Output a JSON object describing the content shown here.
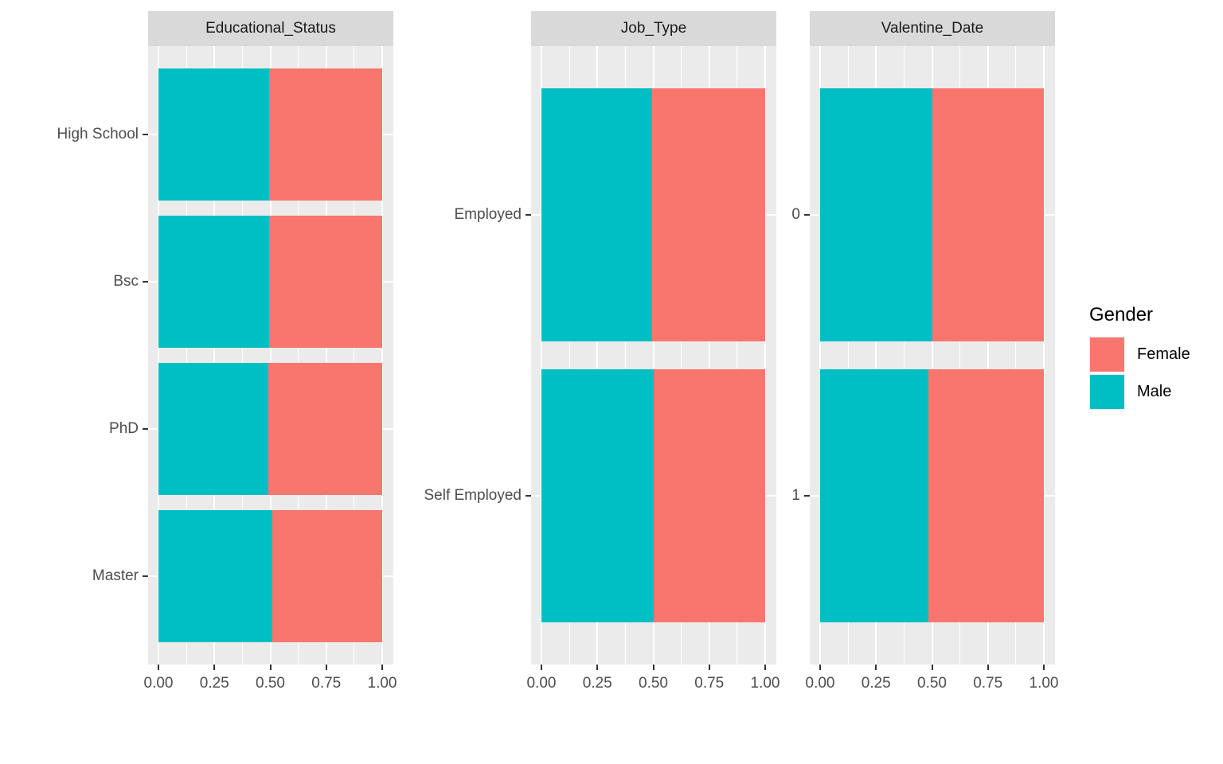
{
  "colors": {
    "male": "#00BFC4",
    "female": "#F8766D",
    "panel_bg": "#EBEBEB",
    "strip_bg": "#D9D9D9",
    "grid": "#FFFFFF",
    "axis_text": "#4D4D4D",
    "strip_text": "#1A1A1A",
    "tick_mark": "#333333"
  },
  "legend": {
    "title": "Gender",
    "items": [
      {
        "label": "Female",
        "color": "#F8766D"
      },
      {
        "label": "Male",
        "color": "#00BFC4"
      }
    ]
  },
  "x_axis": {
    "tick_labels": [
      "0.00",
      "0.25",
      "0.50",
      "0.75",
      "1.00"
    ],
    "tick_values": [
      0,
      0.25,
      0.5,
      0.75,
      1.0
    ],
    "minor_values": [
      0.125,
      0.375,
      0.625,
      0.875
    ]
  },
  "chart_data": {
    "type": "bar",
    "orientation": "horizontal",
    "stacked": true,
    "normalized": true,
    "xlim": [
      0,
      1
    ],
    "x_ticks": [
      0.0,
      0.25,
      0.5,
      0.75,
      1.0
    ],
    "grid": "on",
    "legend_title": "Gender",
    "legend_position": "right",
    "series_names": [
      "Male",
      "Female"
    ],
    "facets": [
      {
        "title": "Educational_Status",
        "categories": [
          "High School",
          "Bsc",
          "PhD",
          "Master"
        ],
        "series": [
          {
            "name": "Male",
            "values": [
              0.495,
              0.495,
              0.49,
              0.51
            ]
          },
          {
            "name": "Female",
            "values": [
              0.505,
              0.505,
              0.51,
              0.49
            ]
          }
        ]
      },
      {
        "title": "Job_Type",
        "categories": [
          "Employed",
          "Self Employed"
        ],
        "series": [
          {
            "name": "Male",
            "values": [
              0.495,
              0.5
            ]
          },
          {
            "name": "Female",
            "values": [
              0.505,
              0.5
            ]
          }
        ]
      },
      {
        "title": "Valentine_Date",
        "categories": [
          "0",
          "1"
        ],
        "series": [
          {
            "name": "Male",
            "values": [
              0.5,
              0.485
            ]
          },
          {
            "name": "Female",
            "values": [
              0.5,
              0.515
            ]
          }
        ]
      }
    ]
  }
}
